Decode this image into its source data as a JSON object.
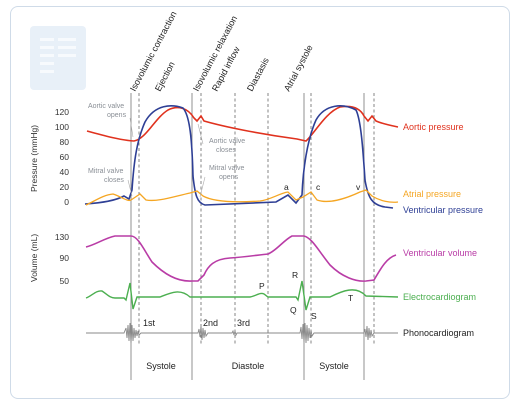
{
  "phases": [
    "Isovolumic contraction",
    "Ejection",
    "Isovolumic relaxation",
    "Rapid inflow",
    "Diastasis",
    "Atrial systole"
  ],
  "pressure_axis": {
    "title": "Pressure (mmHg)",
    "ticks": [
      "120",
      "100",
      "80",
      "60",
      "40",
      "20",
      "0"
    ]
  },
  "volume_axis": {
    "title": "Volume (mL)",
    "ticks": [
      "130",
      "90",
      "50"
    ]
  },
  "annotations": {
    "aortic_opens_1": "Aortic valve",
    "aortic_opens_2": "opens",
    "aortic_closes_1": "Aortic valve",
    "aortic_closes_2": "closes",
    "mitral_closes_1": "Mitral valve",
    "mitral_closes_2": "closes",
    "mitral_opens_1": "Mitral valve",
    "mitral_opens_2": "opens"
  },
  "wave_labels": {
    "a": "a",
    "c": "c",
    "v": "v",
    "P": "P",
    "Q": "Q",
    "R": "R",
    "S": "S",
    "T": "T"
  },
  "heart_sounds": {
    "first": "1st",
    "second": "2nd",
    "third": "3rd"
  },
  "legend": {
    "aortic_pressure": "Aortic pressure",
    "atrial_pressure": "Atrial pressure",
    "ventricular_pressure": "Ventricular pressure",
    "ventricular_volume": "Ventricular volume",
    "ecg": "Electrocardiogram",
    "phono": "Phonocardiogram"
  },
  "cycle_labels": {
    "systole_1": "Systole",
    "diastole": "Diastole",
    "systole_2": "Systole"
  },
  "colors": {
    "aortic": "#e0321e",
    "atrial": "#f5a623",
    "ventricular": "#2e3f95",
    "volume": "#b93ca6",
    "ecg": "#4caf50",
    "phono": "#888888",
    "frame": "#cfdbe8",
    "logo": "#e3edf7"
  }
}
